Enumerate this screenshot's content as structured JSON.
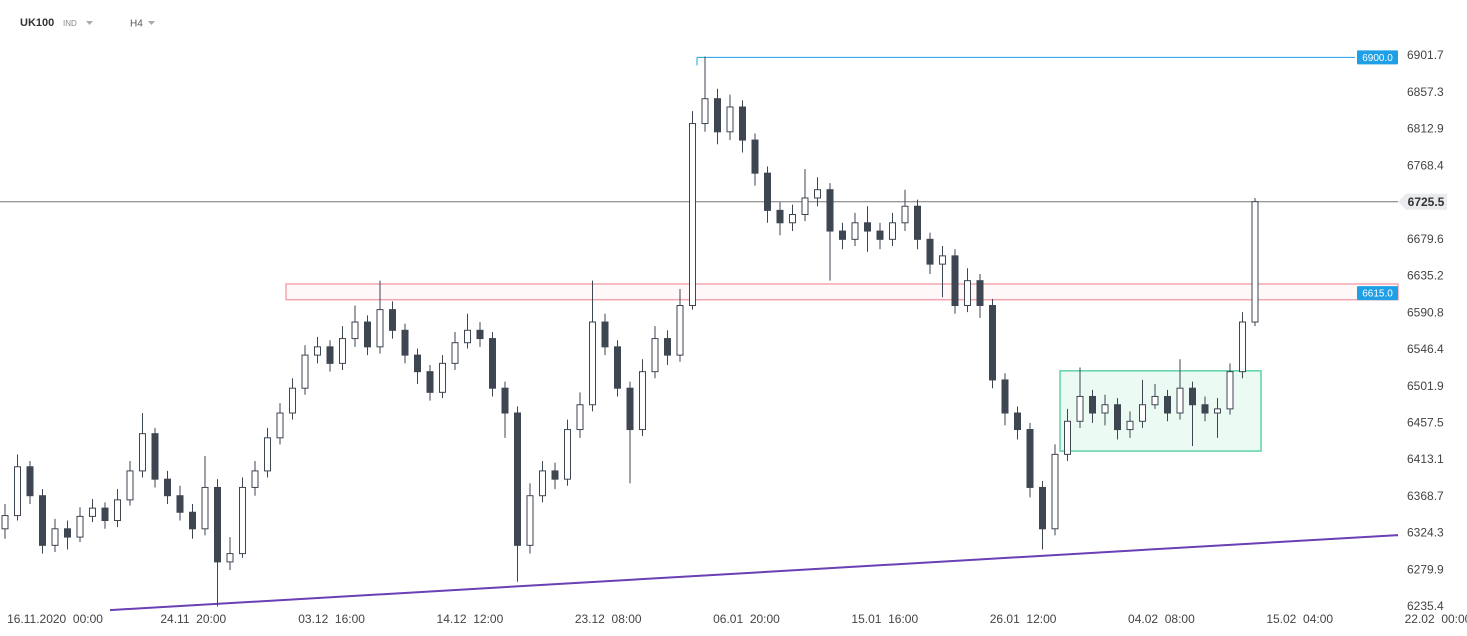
{
  "chart_data": {
    "type": "candlestick",
    "symbol": "UK100",
    "market": "IND",
    "interval": "H4",
    "color": "#3d4651",
    "open": [
      6330,
      6346,
      6405,
      6370,
      6310,
      6330,
      6320,
      6345,
      6355,
      6340,
      6365,
      6400,
      6445,
      6390,
      6370,
      6350,
      6330,
      6380,
      6290,
      6300,
      6380,
      6400,
      6440,
      6470,
      6500,
      6540,
      6550,
      6530,
      6560,
      6580,
      6550,
      6595,
      6570,
      6540,
      6520,
      6495,
      6530,
      6555,
      6570,
      6560,
      6500,
      6470,
      6310,
      6370,
      6400,
      6390,
      6450,
      6480,
      6580,
      6550,
      6500,
      6450,
      6520,
      6560,
      6540,
      6600,
      6820,
      6850,
      6810,
      6840,
      6800,
      6760,
      6715,
      6700,
      6710,
      6730,
      6740,
      6690,
      6680,
      6700,
      6690,
      6680,
      6700,
      6720,
      6680,
      6650,
      6660,
      6600,
      6630,
      6600,
      6510,
      6470,
      6450,
      6380,
      6330,
      6420,
      6460,
      6490,
      6470,
      6480,
      6450,
      6460,
      6480,
      6490,
      6470,
      6500,
      6480,
      6470,
      6475,
      6520,
      6580
    ],
    "high": [
      6360,
      6420,
      6412,
      6378,
      6342,
      6340,
      6356,
      6366,
      6362,
      6378,
      6412,
      6470,
      6452,
      6400,
      6382,
      6360,
      6418,
      6390,
      6320,
      6392,
      6412,
      6452,
      6482,
      6512,
      6552,
      6562,
      6558,
      6575,
      6600,
      6588,
      6630,
      6605,
      6578,
      6548,
      6528,
      6540,
      6568,
      6590,
      6580,
      6568,
      6508,
      6478,
      6385,
      6412,
      6410,
      6462,
      6495,
      6630,
      6590,
      6558,
      6508,
      6535,
      6575,
      6570,
      6620,
      6835,
      6901,
      6862,
      6855,
      6848,
      6808,
      6768,
      6725,
      6722,
      6765,
      6755,
      6748,
      6700,
      6712,
      6720,
      6700,
      6712,
      6740,
      6728,
      6688,
      6672,
      6668,
      6645,
      6638,
      6608,
      6518,
      6478,
      6458,
      6388,
      6432,
      6475,
      6525,
      6498,
      6492,
      6488,
      6472,
      6510,
      6505,
      6498,
      6535,
      6508,
      6490,
      6488,
      6530,
      6592,
      6730
    ],
    "low": [
      6318,
      6340,
      6360,
      6300,
      6302,
      6305,
      6314,
      6338,
      6330,
      6332,
      6358,
      6392,
      6380,
      6360,
      6340,
      6318,
      6322,
      6236,
      6280,
      6295,
      6370,
      6392,
      6432,
      6462,
      6492,
      6530,
      6520,
      6522,
      6550,
      6540,
      6542,
      6560,
      6530,
      6505,
      6485,
      6488,
      6522,
      6548,
      6550,
      6490,
      6440,
      6266,
      6300,
      6362,
      6378,
      6382,
      6440,
      6472,
      6540,
      6490,
      6385,
      6442,
      6512,
      6528,
      6532,
      6595,
      6810,
      6795,
      6800,
      6785,
      6745,
      6700,
      6685,
      6690,
      6702,
      6720,
      6630,
      6668,
      6672,
      6665,
      6668,
      6672,
      6690,
      6668,
      6638,
      6610,
      6590,
      6592,
      6585,
      6500,
      6455,
      6438,
      6368,
      6305,
      6322,
      6412,
      6452,
      6458,
      6455,
      6438,
      6440,
      6452,
      6475,
      6460,
      6462,
      6430,
      6460,
      6440,
      6468,
      6512,
      6575
    ],
    "close": [
      6346,
      6405,
      6370,
      6310,
      6330,
      6320,
      6345,
      6355,
      6340,
      6365,
      6400,
      6445,
      6390,
      6370,
      6350,
      6330,
      6380,
      6290,
      6300,
      6380,
      6400,
      6440,
      6470,
      6500,
      6540,
      6550,
      6530,
      6560,
      6580,
      6550,
      6595,
      6570,
      6540,
      6520,
      6495,
      6530,
      6555,
      6570,
      6560,
      6500,
      6470,
      6310,
      6370,
      6400,
      6390,
      6450,
      6480,
      6580,
      6550,
      6500,
      6450,
      6520,
      6560,
      6540,
      6600,
      6820,
      6850,
      6810,
      6840,
      6800,
      6760,
      6715,
      6700,
      6710,
      6730,
      6740,
      6690,
      6680,
      6700,
      6690,
      6680,
      6700,
      6720,
      6680,
      6650,
      6660,
      6600,
      6630,
      6600,
      6510,
      6470,
      6450,
      6380,
      6330,
      6420,
      6460,
      6490,
      6470,
      6480,
      6450,
      6460,
      6480,
      6490,
      6470,
      6500,
      6480,
      6470,
      6475,
      6520,
      6580,
      6725.5
    ],
    "x_labels": [
      "16.11.2020  00:00",
      "24.11  20:00",
      "03.12  16:00",
      "14.12  12:00",
      "23.12  08:00",
      "06.01  20:00",
      "15.01  16:00",
      "26.01  12:00",
      "04.02  08:00",
      "15.02  04:00",
      "22.02  00:00"
    ],
    "ylim": [
      6229.4,
      6921.0
    ],
    "yticks": [
      6901.7,
      6857.3,
      6812.9,
      6768.4,
      6679.6,
      6635.2,
      6590.8,
      6546.4,
      6501.9,
      6457.5,
      6413.1,
      6368.7,
      6324.3,
      6279.9,
      6235.4
    ],
    "last_price": 6725.5,
    "level": {
      "value": 6900,
      "label": "6900.0",
      "color": "#1e9fe6"
    },
    "zone": {
      "low": 6607,
      "high": 6626,
      "tag": {
        "value": 6615,
        "label": "6615.0"
      },
      "color": "#f4a6ae"
    },
    "box": {
      "low": 6424,
      "high": 6521,
      "color": "#5fd3a8"
    },
    "trendline": {
      "start": 6231.7,
      "end": 6322.4,
      "color": "#6b3fb5"
    }
  }
}
